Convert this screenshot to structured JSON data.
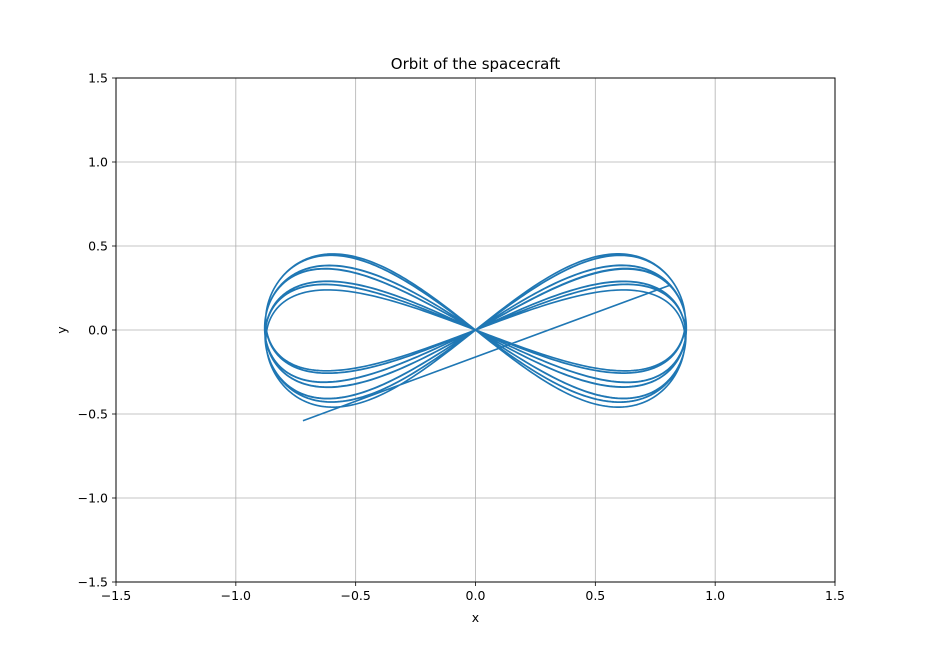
{
  "chart_data": {
    "type": "line",
    "title": "Orbit of the spacecraft",
    "xlabel": "x",
    "ylabel": "y",
    "xlim": [
      -1.5,
      1.5
    ],
    "ylim": [
      -1.5,
      1.5
    ],
    "xticks": [
      -1.5,
      -1.0,
      -0.5,
      0.0,
      0.5,
      1.0,
      1.5
    ],
    "yticks": [
      -1.5,
      -1.0,
      -0.5,
      0.0,
      0.5,
      1.0,
      1.5
    ],
    "xtick_labels": [
      "−1.5",
      "−1.0",
      "−0.5",
      "0.0",
      "0.5",
      "1.0",
      "1.5"
    ],
    "ytick_labels": [
      "−1.5",
      "−1.0",
      "−0.5",
      "0.0",
      "0.5",
      "1.0",
      "1.5"
    ],
    "grid": true,
    "line_color": "#1f77b4",
    "grid_color": "#b0b0b0",
    "curve": {
      "description_type": "precessing figure-eight (lemniscate-like) orbit",
      "x_extent": [
        -0.91,
        0.91
      ],
      "y_extent": [
        -0.71,
        0.71
      ],
      "end_point": [
        -0.72,
        -0.54
      ],
      "loops": 14
    }
  }
}
